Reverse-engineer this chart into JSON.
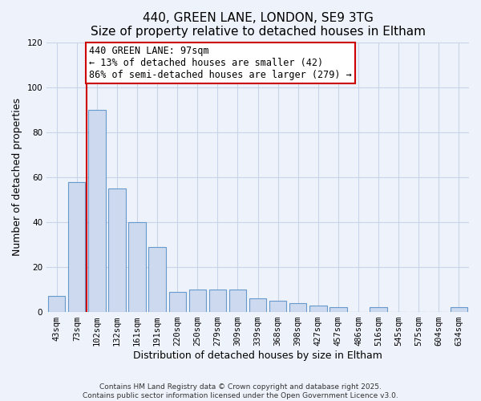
{
  "title": "440, GREEN LANE, LONDON, SE9 3TG",
  "subtitle": "Size of property relative to detached houses in Eltham",
  "xlabel": "Distribution of detached houses by size in Eltham",
  "ylabel": "Number of detached properties",
  "bar_labels": [
    "43sqm",
    "73sqm",
    "102sqm",
    "132sqm",
    "161sqm",
    "191sqm",
    "220sqm",
    "250sqm",
    "279sqm",
    "309sqm",
    "339sqm",
    "368sqm",
    "398sqm",
    "427sqm",
    "457sqm",
    "486sqm",
    "516sqm",
    "545sqm",
    "575sqm",
    "604sqm",
    "634sqm"
  ],
  "bar_values": [
    7,
    58,
    90,
    55,
    40,
    29,
    9,
    10,
    10,
    10,
    6,
    5,
    4,
    3,
    2,
    0,
    2,
    0,
    0,
    0,
    2
  ],
  "bar_color": "#ccd9ee",
  "bar_edge_color": "#6699cc",
  "property_label": "440 GREEN LANE: 97sqm",
  "annotation_line1": "← 13% of detached houses are smaller (42)",
  "annotation_line2": "86% of semi-detached houses are larger (279) →",
  "vline_x_index": 2,
  "vline_color": "#cc0000",
  "annotation_box_color": "#ffffff",
  "annotation_box_edge": "#cc0000",
  "ylim": [
    0,
    120
  ],
  "yticks": [
    0,
    20,
    40,
    60,
    80,
    100,
    120
  ],
  "grid_color": "#c8d4e8",
  "background_color": "#eef2fa",
  "footer_line1": "Contains HM Land Registry data © Crown copyright and database right 2025.",
  "footer_line2": "Contains public sector information licensed under the Open Government Licence v3.0.",
  "title_fontsize": 11,
  "axis_label_fontsize": 9,
  "tick_fontsize": 7.5,
  "annotation_fontsize": 8.5,
  "footer_fontsize": 6.5
}
